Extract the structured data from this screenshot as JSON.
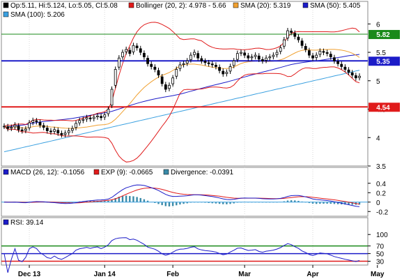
{
  "chart_data": [
    {
      "panel": "price",
      "type": "candlestick",
      "legend": [
        {
          "label": "Op:5.11, Hi:5.124, Lo:5.05, Cl:5.08",
          "color": "#000000"
        },
        {
          "label": "Bollinger (20, 2): 4.978 - 5.66",
          "color": "#e01b1b"
        },
        {
          "label": "SMA (20): 5.319",
          "color": "#f0a030"
        },
        {
          "label": "SMA (50): 5.405",
          "color": "#1c1cc8"
        },
        {
          "label": "SMA (100): 5.206",
          "color": "#3aa0e0"
        }
      ],
      "ylim": [
        3.5,
        6.2
      ],
      "y_ticks": [
        "6",
        "5.5",
        "5",
        "4.5",
        "4",
        "3.5"
      ],
      "x_ticks": [
        "Dec 13",
        "Jan 14",
        "Feb",
        "Mar",
        "Apr",
        "May"
      ],
      "levels": [
        {
          "value": 5.82,
          "label": "5.82",
          "color": "#1a8a1a"
        },
        {
          "value": 5.35,
          "label": "5.35",
          "color": "#1c1cc8"
        },
        {
          "value": 4.54,
          "label": "4.54",
          "color": "#e01b1b"
        }
      ],
      "close": [
        4.2,
        4.16,
        4.18,
        4.22,
        4.14,
        4.12,
        4.15,
        4.26,
        4.3,
        4.28,
        4.22,
        4.18,
        4.12,
        4.1,
        4.14,
        4.08,
        4.05,
        4.08,
        4.12,
        4.16,
        4.25,
        4.3,
        4.32,
        4.35,
        4.33,
        4.36,
        4.38,
        4.35,
        4.4,
        4.5,
        4.85,
        5.2,
        5.4,
        5.5,
        5.55,
        5.48,
        5.62,
        5.58,
        5.5,
        5.42,
        5.3,
        5.25,
        5.2,
        5.1,
        4.95,
        4.85,
        4.92,
        5.05,
        5.2,
        5.28,
        5.3,
        5.35,
        5.45,
        5.5,
        5.4,
        5.35,
        5.32,
        5.3,
        5.28,
        5.25,
        5.18,
        5.12,
        5.15,
        5.25,
        5.35,
        5.48,
        5.5,
        5.45,
        5.4,
        5.42,
        5.45,
        5.38,
        5.35,
        5.4,
        5.42,
        5.45,
        5.5,
        5.58,
        5.72,
        5.88,
        5.85,
        5.78,
        5.72,
        5.62,
        5.55,
        5.45,
        5.4,
        5.45,
        5.52,
        5.5,
        5.48,
        5.42,
        5.35,
        5.3,
        5.25,
        5.2,
        5.15,
        5.1,
        5.05,
        5.08
      ]
    },
    {
      "panel": "macd",
      "type": "line",
      "legend": [
        {
          "label": "MACD (26, 12): -0.1056",
          "color": "#1c1cc8"
        },
        {
          "label": "EXP (9): -0.0665",
          "color": "#e01b1b"
        },
        {
          "label": "Divergence: -0.0391",
          "color": "#3a8aa8"
        }
      ],
      "ylim": [
        -0.3,
        0.5
      ],
      "y_ticks": [
        "0.4",
        "0.2",
        "0",
        "-0.2"
      ]
    },
    {
      "panel": "rsi",
      "type": "line",
      "legend": [
        {
          "label": "RSI: 39.14",
          "color": "#1c1cc8"
        }
      ],
      "ylim": [
        20,
        115
      ],
      "y_ticks": [
        "100",
        "70",
        "50",
        "30"
      ],
      "levels": [
        {
          "value": 70,
          "color": "#1a8a1a"
        },
        {
          "value": 50,
          "color": "#1c1cc8"
        },
        {
          "value": 30,
          "color": "#e01b1b"
        }
      ]
    }
  ]
}
